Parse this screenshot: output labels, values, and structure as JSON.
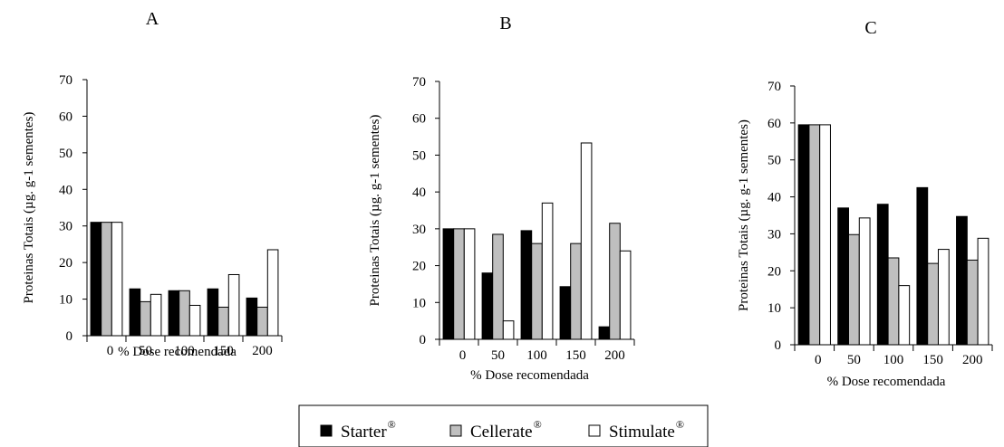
{
  "chart_data": [
    {
      "type": "bar",
      "title": "A",
      "xlabel": "% Dose recomendada",
      "ylabel": "Proteinas Totais (µg. g-1 sementes)",
      "categories": [
        "0",
        "50",
        "100",
        "150",
        "200"
      ],
      "ylim": [
        0,
        70
      ],
      "yticks": [
        0,
        10,
        20,
        30,
        40,
        50,
        60,
        70
      ],
      "series": [
        {
          "name": "Starter",
          "values": [
            31,
            12.8,
            12.3,
            12.8,
            10.3
          ]
        },
        {
          "name": "Cellerate",
          "values": [
            31,
            9.3,
            12.3,
            7.8,
            7.8
          ]
        },
        {
          "name": "Stimulate",
          "values": [
            31,
            11.3,
            8.3,
            16.7,
            23.5
          ]
        }
      ]
    },
    {
      "type": "bar",
      "title": "B",
      "xlabel": "% Dose recomendada",
      "ylabel": "Proteinas Totais (µg. g-1 sementes)",
      "categories": [
        "0",
        "50",
        "100",
        "150",
        "200"
      ],
      "ylim": [
        0,
        70
      ],
      "yticks": [
        0,
        10,
        20,
        30,
        40,
        50,
        60,
        70
      ],
      "series": [
        {
          "name": "Starter",
          "values": [
            30,
            18,
            29.5,
            14.3,
            3.4
          ]
        },
        {
          "name": "Cellerate",
          "values": [
            30,
            28.5,
            26,
            26,
            31.5
          ]
        },
        {
          "name": "Stimulate",
          "values": [
            30,
            5,
            37,
            53.3,
            24
          ]
        }
      ]
    },
    {
      "type": "bar",
      "title": "C",
      "xlabel": "% Dose recomendada",
      "ylabel": "Proteinas Totais (µg. g-1 sementes)",
      "categories": [
        "0",
        "50",
        "100",
        "150",
        "200"
      ],
      "ylim": [
        0,
        70
      ],
      "yticks": [
        0,
        10,
        20,
        30,
        40,
        50,
        60,
        70
      ],
      "series": [
        {
          "name": "Starter",
          "values": [
            59.5,
            37,
            38,
            42.5,
            34.7
          ]
        },
        {
          "name": "Cellerate",
          "values": [
            59.5,
            29.8,
            23.5,
            22,
            22.9
          ]
        },
        {
          "name": "Stimulate",
          "values": [
            59.5,
            34.3,
            16,
            25.8,
            28.8
          ]
        }
      ]
    }
  ],
  "legend": {
    "placement": "bottom-center",
    "items": [
      {
        "label": "Starter",
        "sup": "®",
        "color": "#000000"
      },
      {
        "label": "Cellerate",
        "sup": "®",
        "color": "#bfbfbf"
      },
      {
        "label": "Stimulate",
        "sup": "®",
        "color": "#ffffff"
      }
    ]
  },
  "colors": {
    "Starter": "#000000",
    "Cellerate": "#bfbfbf",
    "Stimulate": "#ffffff"
  }
}
